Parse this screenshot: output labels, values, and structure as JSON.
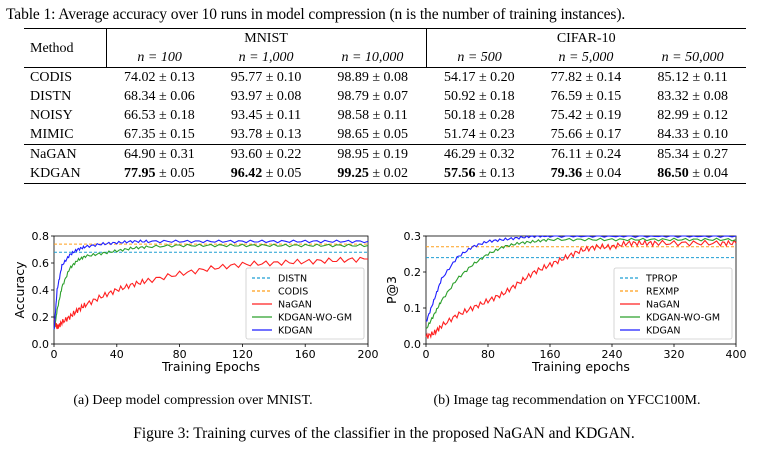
{
  "table_caption": "Table 1: Average accuracy over 10 runs in model compression (n is the number of training instances).",
  "table": {
    "method_header": "Method",
    "groups": [
      "MNIST",
      "CIFAR-10"
    ],
    "n_headers": [
      "n = 100",
      "n = 1,000",
      "n = 10,000",
      "n = 500",
      "n = 5,000",
      "n = 50,000"
    ],
    "rows": [
      {
        "method": "CODIS",
        "cells": [
          "74.02 ± 0.13",
          "95.77 ± 0.10",
          "98.89 ± 0.08",
          "54.17 ± 0.20",
          "77.82 ± 0.14",
          "85.12 ± 0.11"
        ]
      },
      {
        "method": "DISTN",
        "cells": [
          "68.34 ± 0.06",
          "93.97 ± 0.08",
          "98.79 ± 0.07",
          "50.92 ± 0.18",
          "76.59 ± 0.15",
          "83.32 ± 0.08"
        ]
      },
      {
        "method": "NOISY",
        "cells": [
          "66.53 ± 0.18",
          "93.45 ± 0.11",
          "98.58 ± 0.11",
          "50.18 ± 0.28",
          "75.42 ± 0.19",
          "82.99 ± 0.12"
        ]
      },
      {
        "method": "MIMIC",
        "cells": [
          "67.35 ± 0.15",
          "93.78 ± 0.13",
          "98.65 ± 0.05",
          "51.74 ± 0.23",
          "75.66 ± 0.17",
          "84.33 ± 0.10"
        ]
      },
      {
        "method": "NaGAN",
        "cells": [
          "64.90 ± 0.31",
          "93.60 ± 0.22",
          "98.95 ± 0.19",
          "46.29 ± 0.32",
          "76.11 ± 0.24",
          "85.34 ± 0.27"
        ]
      },
      {
        "method": "KDGAN",
        "cells_bold": [
          "77.95",
          "96.42",
          "99.25",
          "57.56",
          "79.36",
          "86.50"
        ],
        "cells_rest": [
          "± 0.05",
          "± 0.05",
          "± 0.02",
          "± 0.13",
          "± 0.04",
          "± 0.04"
        ]
      }
    ]
  },
  "subcaption_a": "(a) Deep model compression over MNIST.",
  "subcaption_b": "(b) Image tag recommendation on YFCC100M.",
  "figure_caption": "Figure 3: Training curves of the classifier in the proposed NaGAN and KDGAN.",
  "colors": {
    "blue": "#1f1fff",
    "green": "#2ca02c",
    "red": "#ff2020",
    "baseline_cyan": "#1f9fd4",
    "baseline_orange": "#ff9f1a"
  },
  "chart_data": [
    {
      "type": "line",
      "xlabel": "Training Epochs",
      "ylabel": "Accuracy",
      "xlim": [
        0,
        200
      ],
      "ylim": [
        0,
        0.8
      ],
      "xticks": [
        "0",
        "40",
        "80",
        "120",
        "160",
        "200"
      ],
      "yticks": [
        "0.0",
        "0.2",
        "0.4",
        "0.6",
        "0.8"
      ],
      "legend_position": "lower-right",
      "baselines": [
        {
          "name": "DISTN",
          "value": 0.68,
          "style": "dashed",
          "color": "#1f9fd4"
        },
        {
          "name": "CODIS",
          "value": 0.74,
          "style": "dashed",
          "color": "#ff9f1a"
        }
      ],
      "series": [
        {
          "name": "NaGAN",
          "color": "#ff2020",
          "x": [
            0,
            2,
            5,
            10,
            15,
            20,
            30,
            40,
            50,
            60,
            80,
            100,
            120,
            140,
            160,
            180,
            200
          ],
          "values": [
            0.18,
            0.12,
            0.16,
            0.2,
            0.25,
            0.29,
            0.35,
            0.4,
            0.44,
            0.47,
            0.52,
            0.56,
            0.59,
            0.6,
            0.61,
            0.62,
            0.63
          ]
        },
        {
          "name": "KDGAN-WO-GM",
          "color": "#2ca02c",
          "x": [
            0,
            2,
            5,
            10,
            15,
            20,
            30,
            40,
            50,
            60,
            80,
            100,
            120,
            140,
            160,
            180,
            200
          ],
          "values": [
            0.1,
            0.25,
            0.42,
            0.56,
            0.62,
            0.65,
            0.67,
            0.69,
            0.71,
            0.72,
            0.73,
            0.73,
            0.73,
            0.73,
            0.73,
            0.73,
            0.73
          ]
        },
        {
          "name": "KDGAN",
          "color": "#1f1fff",
          "x": [
            0,
            2,
            5,
            10,
            15,
            20,
            30,
            40,
            50,
            60,
            80,
            100,
            120,
            140,
            160,
            180,
            200
          ],
          "values": [
            0.1,
            0.4,
            0.58,
            0.66,
            0.7,
            0.72,
            0.74,
            0.75,
            0.76,
            0.76,
            0.76,
            0.76,
            0.76,
            0.76,
            0.76,
            0.76,
            0.76
          ]
        }
      ]
    },
    {
      "type": "line",
      "xlabel": "Training epochs",
      "ylabel": "P@3",
      "xlim": [
        0,
        400
      ],
      "ylim": [
        0,
        0.3
      ],
      "xticks": [
        "0",
        "80",
        "160",
        "240",
        "320",
        "400"
      ],
      "yticks": [
        "0.0",
        "0.1",
        "0.2",
        "0.3"
      ],
      "legend_position": "lower-right",
      "baselines": [
        {
          "name": "TPROP",
          "value": 0.24,
          "style": "dashed",
          "color": "#1f9fd4"
        },
        {
          "name": "REXMP",
          "value": 0.27,
          "style": "dashed",
          "color": "#ff9f1a"
        }
      ],
      "series": [
        {
          "name": "NaGAN",
          "color": "#ff2020",
          "x": [
            0,
            10,
            20,
            40,
            60,
            80,
            100,
            120,
            140,
            160,
            180,
            200,
            220,
            240,
            260,
            280,
            300,
            340,
            380,
            400
          ],
          "values": [
            0.02,
            0.03,
            0.05,
            0.08,
            0.1,
            0.12,
            0.14,
            0.17,
            0.2,
            0.22,
            0.24,
            0.26,
            0.27,
            0.27,
            0.28,
            0.28,
            0.28,
            0.28,
            0.28,
            0.28
          ]
        },
        {
          "name": "KDGAN-WO-GM",
          "color": "#2ca02c",
          "x": [
            0,
            10,
            20,
            40,
            60,
            80,
            100,
            120,
            140,
            160,
            200,
            240,
            280,
            320,
            360,
            400
          ],
          "values": [
            0.04,
            0.08,
            0.12,
            0.18,
            0.22,
            0.25,
            0.27,
            0.28,
            0.285,
            0.29,
            0.29,
            0.29,
            0.29,
            0.29,
            0.29,
            0.29
          ]
        },
        {
          "name": "KDGAN",
          "color": "#1f1fff",
          "x": [
            0,
            10,
            20,
            40,
            60,
            80,
            100,
            120,
            140,
            160,
            200,
            240,
            280,
            320,
            360,
            400
          ],
          "values": [
            0.06,
            0.12,
            0.18,
            0.24,
            0.27,
            0.285,
            0.29,
            0.295,
            0.3,
            0.3,
            0.3,
            0.3,
            0.3,
            0.3,
            0.3,
            0.3
          ]
        }
      ]
    }
  ]
}
